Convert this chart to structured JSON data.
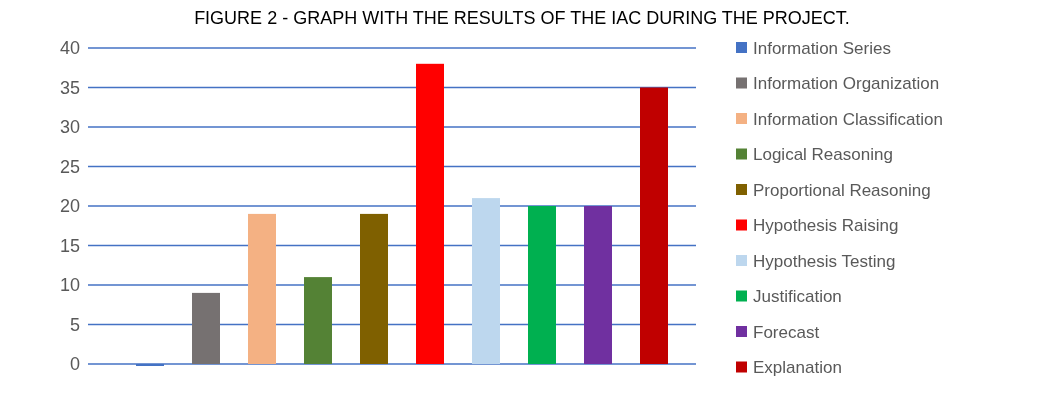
{
  "chart_data": {
    "type": "bar",
    "title": "FIGURE 2 - GRAPH WITH THE RESULTS OF THE IAC DURING THE PROJECT.",
    "categories": [
      null,
      null,
      null,
      null,
      null,
      null,
      null,
      null,
      null,
      null
    ],
    "series": [
      {
        "name": "Information Series",
        "color": "#4472c4",
        "values": [
          0,
          null,
          null,
          null,
          null,
          null,
          null,
          null,
          null,
          null
        ]
      },
      {
        "name": "Information Organization",
        "color": "#767171",
        "values": [
          null,
          9,
          null,
          null,
          null,
          null,
          null,
          null,
          null,
          null
        ]
      },
      {
        "name": "Information Classification",
        "color": "#f4b183",
        "values": [
          null,
          null,
          19,
          null,
          null,
          null,
          null,
          null,
          null,
          null
        ]
      },
      {
        "name": "Logical Reasoning",
        "color": "#548235",
        "values": [
          null,
          null,
          null,
          11,
          null,
          null,
          null,
          null,
          null,
          null
        ]
      },
      {
        "name": "Proportional Reasoning",
        "color": "#7f6000",
        "values": [
          null,
          null,
          null,
          null,
          19,
          null,
          null,
          null,
          null,
          null
        ]
      },
      {
        "name": "Hypothesis Raising",
        "color": "#ff0000",
        "values": [
          null,
          null,
          null,
          null,
          null,
          38,
          null,
          null,
          null,
          null
        ]
      },
      {
        "name": "Hypothesis Testing",
        "color": "#bdd7ee",
        "values": [
          null,
          null,
          null,
          null,
          null,
          null,
          21,
          null,
          null,
          null
        ]
      },
      {
        "name": "Justification",
        "color": "#00b050",
        "values": [
          null,
          null,
          null,
          null,
          null,
          null,
          null,
          20,
          null,
          null
        ]
      },
      {
        "name": "Forecast",
        "color": "#7030a0",
        "values": [
          null,
          null,
          null,
          null,
          null,
          null,
          null,
          null,
          20,
          null
        ]
      },
      {
        "name": "Explanation",
        "color": "#c00000",
        "values": [
          null,
          null,
          null,
          null,
          null,
          null,
          null,
          null,
          null,
          35
        ]
      }
    ],
    "ylim": [
      0,
      40
    ],
    "yticks": [
      0,
      5,
      10,
      15,
      20,
      25,
      30,
      35,
      40
    ],
    "grid": "y",
    "legend": "right"
  }
}
